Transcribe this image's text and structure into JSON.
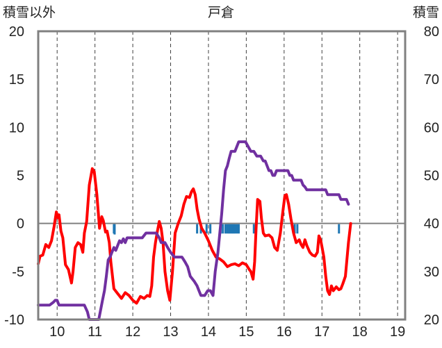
{
  "chart_data": {
    "type": "line",
    "title": "戸倉",
    "left_axis_label": "積雪以外",
    "right_axis_label": "積雪",
    "x_ticks": [
      "10",
      "11",
      "12",
      "13",
      "14",
      "15",
      "16",
      "17",
      "18",
      "19"
    ],
    "x_range": [
      9.5,
      19.2
    ],
    "y_left_ticks": [
      "20",
      "15",
      "10",
      "5",
      "0",
      "-5",
      "-10"
    ],
    "y_left_range": [
      -10,
      20
    ],
    "y_right_ticks": [
      "80",
      "70",
      "60",
      "50",
      "40",
      "30",
      "20"
    ],
    "y_right_range": [
      20,
      80
    ],
    "grid": "dashed vertical at each day",
    "series": [
      {
        "color": "#ff0000",
        "axis": "left",
        "points": [
          [
            9.5,
            -4.2
          ],
          [
            9.55,
            -3.4
          ],
          [
            9.62,
            -3.3
          ],
          [
            9.7,
            -2.2
          ],
          [
            9.78,
            -2.5
          ],
          [
            9.85,
            -1.8
          ],
          [
            9.92,
            -0.3
          ],
          [
            9.98,
            1.2
          ],
          [
            10.02,
            0.6
          ],
          [
            10.05,
            0.9
          ],
          [
            10.1,
            -0.8
          ],
          [
            10.15,
            -1.5
          ],
          [
            10.22,
            -4.3
          ],
          [
            10.3,
            -4.8
          ],
          [
            10.38,
            -6.2
          ],
          [
            10.42,
            -5.0
          ],
          [
            10.48,
            -2.5
          ],
          [
            10.55,
            -2.0
          ],
          [
            10.62,
            -2.2
          ],
          [
            10.68,
            -3.0
          ],
          [
            10.72,
            -1.0
          ],
          [
            10.78,
            0.2
          ],
          [
            10.85,
            4.0
          ],
          [
            10.93,
            5.7
          ],
          [
            10.98,
            5.4
          ],
          [
            11.05,
            3.0
          ],
          [
            11.12,
            -0.5
          ],
          [
            11.18,
            0.7
          ],
          [
            11.22,
            0.3
          ],
          [
            11.28,
            -0.9
          ],
          [
            11.32,
            -0.8
          ],
          [
            11.38,
            -2.0
          ],
          [
            11.42,
            -4.0
          ],
          [
            11.5,
            -6.8
          ],
          [
            11.6,
            -7.3
          ],
          [
            11.7,
            -7.8
          ],
          [
            11.8,
            -7.2
          ],
          [
            11.9,
            -7.5
          ],
          [
            12.0,
            -8.0
          ],
          [
            12.1,
            -8.3
          ],
          [
            12.2,
            -7.6
          ],
          [
            12.3,
            -7.8
          ],
          [
            12.38,
            -7.5
          ],
          [
            12.45,
            -7.6
          ],
          [
            12.5,
            -6.5
          ],
          [
            12.55,
            -3.5
          ],
          [
            12.6,
            -2.0
          ],
          [
            12.65,
            -0.8
          ],
          [
            12.7,
            0.2
          ],
          [
            12.75,
            -0.5
          ],
          [
            12.8,
            -2.0
          ],
          [
            12.85,
            -5.0
          ],
          [
            12.92,
            -7.0
          ],
          [
            12.98,
            -8.0
          ],
          [
            13.05,
            -5.0
          ],
          [
            13.12,
            -1.0
          ],
          [
            13.2,
            0.0
          ],
          [
            13.28,
            0.8
          ],
          [
            13.35,
            2.0
          ],
          [
            13.42,
            2.8
          ],
          [
            13.5,
            2.7
          ],
          [
            13.55,
            3.3
          ],
          [
            13.6,
            3.6
          ],
          [
            13.65,
            3.0
          ],
          [
            13.7,
            1.5
          ],
          [
            13.75,
            0.5
          ],
          [
            13.82,
            -0.5
          ],
          [
            13.9,
            -1.0
          ],
          [
            14.0,
            -1.8
          ],
          [
            14.1,
            -2.8
          ],
          [
            14.2,
            -3.5
          ],
          [
            14.3,
            -3.7
          ],
          [
            14.4,
            -4.0
          ],
          [
            14.5,
            -4.5
          ],
          [
            14.6,
            -4.3
          ],
          [
            14.7,
            -4.2
          ],
          [
            14.8,
            -4.4
          ],
          [
            14.9,
            -4.1
          ],
          [
            15.0,
            -4.3
          ],
          [
            15.08,
            -4.8
          ],
          [
            15.12,
            -5.0
          ],
          [
            15.18,
            -5.8
          ],
          [
            15.22,
            -4.0
          ],
          [
            15.26,
            -0.5
          ],
          [
            15.3,
            2.5
          ],
          [
            15.36,
            2.3
          ],
          [
            15.4,
            0.5
          ],
          [
            15.45,
            -1.0
          ],
          [
            15.5,
            -1.3
          ],
          [
            15.6,
            -1.2
          ],
          [
            15.68,
            -1.5
          ],
          [
            15.75,
            -2.5
          ],
          [
            15.82,
            -2.8
          ],
          [
            15.9,
            -1.0
          ],
          [
            15.96,
            1.0
          ],
          [
            16.02,
            2.9
          ],
          [
            16.06,
            3.0
          ],
          [
            16.12,
            2.0
          ],
          [
            16.18,
            0.5
          ],
          [
            16.25,
            -1.0
          ],
          [
            16.32,
            -2.0
          ],
          [
            16.4,
            -1.7
          ],
          [
            16.45,
            -2.2
          ],
          [
            16.5,
            -2.5
          ],
          [
            16.55,
            -1.7
          ],
          [
            16.6,
            -2.3
          ],
          [
            16.68,
            -3.0
          ],
          [
            16.75,
            -3.3
          ],
          [
            16.82,
            -3.4
          ],
          [
            16.88,
            -3.0
          ],
          [
            16.92,
            -1.3
          ],
          [
            16.97,
            -1.8
          ],
          [
            17.0,
            -2.4
          ],
          [
            17.05,
            -3.5
          ],
          [
            17.1,
            -5.5
          ],
          [
            17.15,
            -7.0
          ],
          [
            17.2,
            -7.4
          ],
          [
            17.25,
            -6.5
          ],
          [
            17.3,
            -7.0
          ],
          [
            17.38,
            -6.6
          ],
          [
            17.45,
            -6.9
          ],
          [
            17.5,
            -6.8
          ],
          [
            17.55,
            -6.3
          ],
          [
            17.62,
            -5.5
          ],
          [
            17.7,
            -2.0
          ],
          [
            17.76,
            0.0
          ]
        ]
      },
      {
        "color": "#7030a0",
        "axis": "left",
        "points": [
          [
            9.5,
            -8.5
          ],
          [
            9.6,
            -8.5
          ],
          [
            9.7,
            -8.5
          ],
          [
            9.8,
            -8.5
          ],
          [
            9.9,
            -8.2
          ],
          [
            9.95,
            -8.0
          ],
          [
            10.0,
            -8.0
          ],
          [
            10.05,
            -8.5
          ],
          [
            10.2,
            -8.5
          ],
          [
            10.4,
            -8.5
          ],
          [
            10.55,
            -8.5
          ],
          [
            10.72,
            -8.5
          ],
          [
            10.8,
            -9.2
          ],
          [
            10.85,
            -10.0
          ],
          [
            11.0,
            -10.0
          ],
          [
            11.1,
            -10.0
          ],
          [
            11.15,
            -9.0
          ],
          [
            11.2,
            -8.0
          ],
          [
            11.25,
            -7.0
          ],
          [
            11.3,
            -5.5
          ],
          [
            11.35,
            -3.8
          ],
          [
            11.4,
            -3.5
          ],
          [
            11.45,
            -3.0
          ],
          [
            11.5,
            -2.5
          ],
          [
            11.55,
            -2.8
          ],
          [
            11.6,
            -2.3
          ],
          [
            11.65,
            -1.8
          ],
          [
            11.7,
            -2.0
          ],
          [
            11.75,
            -1.6
          ],
          [
            11.8,
            -2.0
          ],
          [
            11.85,
            -1.5
          ],
          [
            11.95,
            -1.5
          ],
          [
            12.05,
            -1.5
          ],
          [
            12.15,
            -1.5
          ],
          [
            12.25,
            -1.5
          ],
          [
            12.35,
            -1.0
          ],
          [
            12.5,
            -1.0
          ],
          [
            12.62,
            -1.0
          ],
          [
            12.7,
            -1.5
          ],
          [
            12.75,
            -2.0
          ],
          [
            12.85,
            -2.0
          ],
          [
            12.92,
            -2.5
          ],
          [
            13.0,
            -3.0
          ],
          [
            13.1,
            -3.5
          ],
          [
            13.2,
            -3.5
          ],
          [
            13.3,
            -3.5
          ],
          [
            13.38,
            -4.0
          ],
          [
            13.45,
            -4.5
          ],
          [
            13.52,
            -5.5
          ],
          [
            13.62,
            -6.0
          ],
          [
            13.7,
            -6.5
          ],
          [
            13.75,
            -7.0
          ],
          [
            13.8,
            -7.5
          ],
          [
            13.9,
            -7.5
          ],
          [
            13.98,
            -7.0
          ],
          [
            14.05,
            -7.0
          ],
          [
            14.12,
            -7.5
          ],
          [
            14.18,
            -5.0
          ],
          [
            14.25,
            -3.0
          ],
          [
            14.3,
            -1.0
          ],
          [
            14.35,
            1.0
          ],
          [
            14.4,
            3.5
          ],
          [
            14.45,
            5.5
          ],
          [
            14.5,
            6.0
          ],
          [
            14.55,
            6.8
          ],
          [
            14.6,
            7.5
          ],
          [
            14.7,
            7.5
          ],
          [
            14.75,
            8.0
          ],
          [
            14.8,
            8.5
          ],
          [
            14.9,
            8.5
          ],
          [
            14.98,
            8.5
          ],
          [
            15.05,
            8.0
          ],
          [
            15.12,
            7.5
          ],
          [
            15.2,
            7.5
          ],
          [
            15.28,
            7.0
          ],
          [
            15.38,
            7.0
          ],
          [
            15.45,
            6.5
          ],
          [
            15.5,
            6.5
          ],
          [
            15.55,
            6.0
          ],
          [
            15.6,
            5.5
          ],
          [
            15.65,
            5.5
          ],
          [
            15.7,
            5.0
          ],
          [
            15.75,
            5.0
          ],
          [
            15.8,
            5.5
          ],
          [
            16.0,
            5.5
          ],
          [
            16.1,
            5.5
          ],
          [
            16.15,
            5.0
          ],
          [
            16.2,
            5.0
          ],
          [
            16.25,
            4.5
          ],
          [
            16.45,
            4.5
          ],
          [
            16.5,
            4.0
          ],
          [
            16.55,
            3.8
          ],
          [
            16.6,
            3.5
          ],
          [
            16.8,
            3.5
          ],
          [
            17.0,
            3.5
          ],
          [
            17.1,
            3.5
          ],
          [
            17.15,
            3.0
          ],
          [
            17.3,
            3.0
          ],
          [
            17.45,
            3.0
          ],
          [
            17.5,
            2.5
          ],
          [
            17.6,
            2.5
          ],
          [
            17.65,
            2.5
          ],
          [
            17.7,
            2.0
          ]
        ]
      },
      {
        "color": "#1f77b4",
        "axis": "left",
        "type": "bar",
        "baseline": 0,
        "points": [
          [
            11.5,
            -0.4
          ],
          [
            11.52,
            -0.5
          ],
          [
            13.7,
            -0.4
          ],
          [
            13.8,
            -0.4
          ],
          [
            13.95,
            -0.4
          ],
          [
            14.05,
            -0.4
          ],
          [
            14.32,
            -0.4
          ],
          [
            14.38,
            -0.4
          ],
          [
            14.45,
            -0.4
          ],
          [
            14.5,
            -0.4
          ],
          [
            14.54,
            -0.4
          ],
          [
            14.58,
            -0.4
          ],
          [
            14.62,
            -0.4
          ],
          [
            14.66,
            -0.4
          ],
          [
            14.7,
            -0.4
          ],
          [
            14.75,
            -0.4
          ],
          [
            14.8,
            -0.4
          ],
          [
            15.2,
            -0.4
          ],
          [
            16.28,
            -0.4
          ],
          [
            16.35,
            -0.4
          ],
          [
            17.45,
            -0.4
          ]
        ]
      }
    ]
  }
}
